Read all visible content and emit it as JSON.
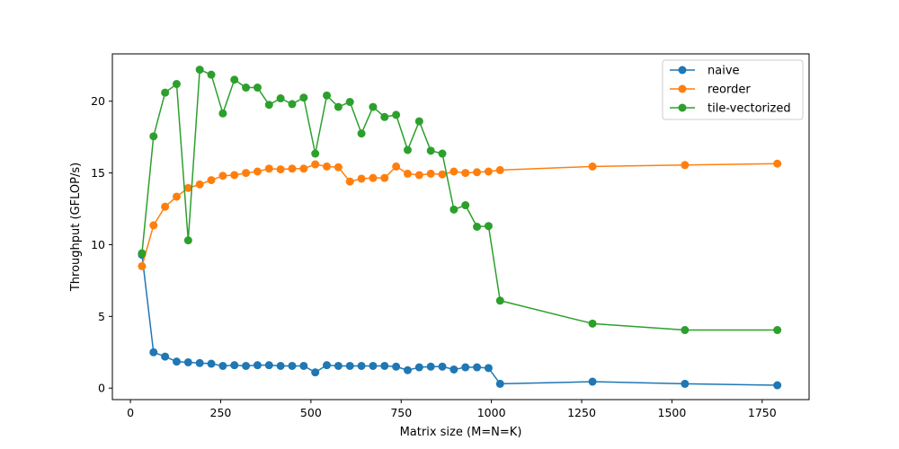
{
  "chart_data": {
    "type": "line",
    "xlabel": "Matrix size (M=N=K)",
    "ylabel": "Throughput (GFLOP/s)",
    "xlim": [
      -50,
      1880
    ],
    "ylim": [
      -0.8,
      23.3
    ],
    "xticks": [
      0,
      250,
      500,
      750,
      1000,
      1250,
      1500,
      1750
    ],
    "yticks": [
      0,
      5,
      10,
      15,
      20
    ],
    "grid": false,
    "legend_position": "top-right",
    "x": [
      32,
      64,
      96,
      128,
      160,
      192,
      224,
      256,
      288,
      320,
      352,
      384,
      416,
      448,
      480,
      512,
      544,
      576,
      608,
      640,
      672,
      704,
      736,
      768,
      800,
      832,
      864,
      896,
      928,
      960,
      992,
      1024,
      1280,
      1536,
      1792
    ],
    "series": [
      {
        "name": "naive",
        "color": "#1f77b4",
        "values": [
          9.3,
          2.5,
          2.2,
          1.85,
          1.8,
          1.75,
          1.7,
          1.55,
          1.6,
          1.55,
          1.6,
          1.6,
          1.55,
          1.55,
          1.55,
          1.1,
          1.6,
          1.55,
          1.55,
          1.55,
          1.55,
          1.55,
          1.5,
          1.25,
          1.45,
          1.5,
          1.5,
          1.3,
          1.45,
          1.45,
          1.4,
          0.3,
          0.45,
          0.3,
          0.2
        ]
      },
      {
        "name": "reorder",
        "color": "#ff7f0e",
        "values": [
          8.5,
          11.35,
          12.65,
          13.35,
          13.95,
          14.2,
          14.5,
          14.8,
          14.85,
          15.0,
          15.1,
          15.3,
          15.25,
          15.3,
          15.3,
          15.6,
          15.45,
          15.4,
          14.4,
          14.6,
          14.65,
          14.65,
          15.45,
          14.95,
          14.85,
          14.95,
          14.9,
          15.1,
          15.0,
          15.05,
          15.1,
          15.2,
          15.45,
          15.55,
          15.65
        ]
      },
      {
        "name": "tile-vectorized",
        "color": "#2ca02c",
        "values": [
          9.4,
          17.55,
          20.6,
          21.2,
          10.3,
          22.2,
          21.85,
          19.15,
          21.5,
          20.95,
          20.95,
          19.75,
          20.2,
          19.8,
          20.25,
          16.35,
          20.4,
          19.6,
          19.95,
          17.75,
          19.6,
          18.9,
          19.05,
          16.6,
          18.6,
          16.55,
          16.35,
          12.45,
          12.75,
          11.25,
          11.3,
          6.1,
          4.5,
          4.05,
          4.05
        ]
      }
    ]
  }
}
